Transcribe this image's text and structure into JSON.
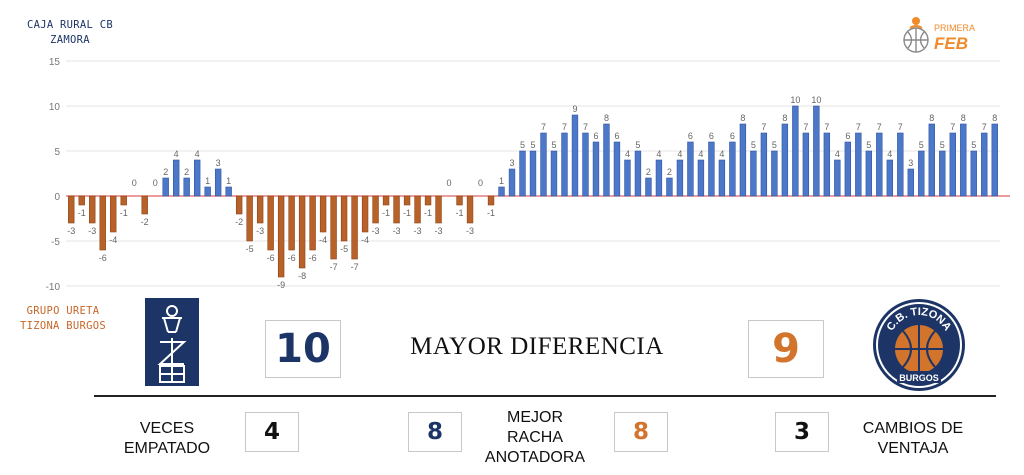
{
  "teams": {
    "top": {
      "line1": "CAJA RURAL CB",
      "line2": "ZAMORA"
    },
    "bottom": {
      "line1": "GRUPO URETA",
      "line2": "TIZONA BURGOS"
    }
  },
  "logos": {
    "league_small": "PRIMERA",
    "league_big": "FEB",
    "burgos_top": "C.B. TIZONA",
    "burgos_bottom": "BURGOS"
  },
  "colors": {
    "zamora": "#1d3566",
    "burgos": "#c8672a",
    "positive_bar": "#4d78c9",
    "negative_bar": "#b8622a",
    "baseline": "#e06060"
  },
  "stats": {
    "mayor_diferencia": {
      "label": "MAYOR DIFERENCIA",
      "zamora": "10",
      "burgos": "9"
    },
    "veces_empatado": {
      "label_line1": "VECES",
      "label_line2": "EMPATADO",
      "value": "4"
    },
    "mejor_racha": {
      "label_line1": "MEJOR",
      "label_line2": "RACHA",
      "label_line3": "ANOTADORA",
      "zamora": "8",
      "burgos": "8"
    },
    "cambios_ventaja": {
      "label_line1": "CAMBIOS DE",
      "label_line2": "VENTAJA",
      "value": "3"
    }
  },
  "chart_data": {
    "type": "bar",
    "ylim": [
      -10,
      15
    ],
    "yticks": [
      -10,
      -5,
      0,
      5,
      10,
      15
    ],
    "grid": true,
    "values": [
      -3,
      -1,
      -3,
      -6,
      -4,
      -1,
      0,
      -2,
      0,
      2,
      4,
      2,
      4,
      1,
      3,
      1,
      -2,
      -5,
      -3,
      -6,
      -9,
      -6,
      -8,
      -6,
      -4,
      -7,
      -5,
      -7,
      -4,
      -3,
      -1,
      -3,
      -1,
      -3,
      -1,
      -3,
      0,
      -1,
      -3,
      0,
      -1,
      1,
      3,
      5,
      5,
      7,
      5,
      7,
      9,
      7,
      6,
      8,
      6,
      4,
      5,
      2,
      4,
      2,
      4,
      6,
      4,
      6,
      4,
      6,
      8,
      5,
      7,
      5,
      8,
      10,
      7,
      10,
      7,
      4,
      6,
      7,
      5,
      7,
      4,
      7,
      3,
      5,
      8,
      5,
      7,
      8,
      5,
      7,
      8
    ]
  }
}
